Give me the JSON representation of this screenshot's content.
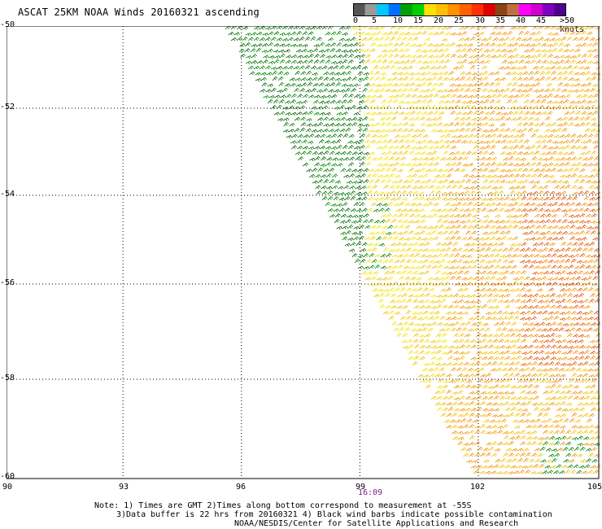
{
  "header": {
    "title": "ASCAT 25KM NOAA Winds 20160321 ascending"
  },
  "colorbar": {
    "ticks": [
      "0",
      "5",
      "10",
      "15",
      "20",
      "25",
      "30",
      "35",
      "40",
      "45"
    ],
    "unit": ">50 knots",
    "colors": [
      "#555555",
      "#9a9a9a",
      "#00c8ff",
      "#0070ff",
      "#00a000",
      "#00d000",
      "#ffe000",
      "#ffc000",
      "#ff9000",
      "#ff6000",
      "#ff3000",
      "#e00000",
      "#8b4513",
      "#c07040",
      "#ff00ff",
      "#d000d0",
      "#8000c0",
      "#500090"
    ]
  },
  "axes": {
    "y_labels": [
      "-50",
      "-52",
      "-54",
      "-56",
      "-58",
      "-60"
    ],
    "x_labels": [
      "90",
      "93",
      "96",
      "99",
      "102",
      "105"
    ],
    "time_label": "16:09"
  },
  "notes": {
    "line1": "Note: 1) Times are GMT 2)Times along bottom correspond to measurement at -55S",
    "line2": "3)Data buffer is 22 hrs from 20160321 4) Black wind barbs indicate possible contamination",
    "line3": "NOAA/NESDIS/Center for Satellite Applications and Research"
  },
  "map": {
    "lat_range": [
      -60,
      -50
    ],
    "lon_range": [
      90,
      105
    ],
    "swath_colors": {
      "green": "#008000",
      "dark_green": "#006400",
      "yellow": "#f2e200",
      "gold": "#f0c000",
      "orange": "#f09000",
      "red_orange": "#e05000"
    }
  }
}
